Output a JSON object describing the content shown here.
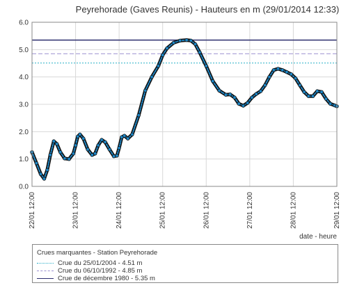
{
  "chart_data": {
    "type": "line",
    "title": "Peyrehorade (Gaves Reunis) - Hauteurs en m (29/01/2014 12:33)",
    "xlabel": "date - heure",
    "ylabel": "",
    "xlim": [
      0,
      7
    ],
    "ylim": [
      0,
      6
    ],
    "y_ticks": [
      "0.0",
      "1.0",
      "2.0",
      "3.0",
      "4.0",
      "5.0",
      "6.0"
    ],
    "x_ticks": [
      "22/01 12:00",
      "23/01 12:00",
      "24/01 12:00",
      "25/01 12:00",
      "26/01 12:00",
      "27/01 12:00",
      "28/01 12:00",
      "29/01 12:00"
    ],
    "grid": true,
    "series": [
      {
        "x": [
          0.0,
          0.1,
          0.2,
          0.28,
          0.35,
          0.42,
          0.5,
          0.57,
          0.65,
          0.75,
          0.85,
          0.95,
          1.0,
          1.05,
          1.1,
          1.18,
          1.28,
          1.38,
          1.45,
          1.52,
          1.6,
          1.68,
          1.78,
          1.88,
          1.95,
          2.0,
          2.06,
          2.12,
          2.2,
          2.3,
          2.45,
          2.6,
          2.75,
          2.9,
          3.0,
          3.1,
          3.25,
          3.4,
          3.55,
          3.65,
          3.75,
          3.85,
          4.0,
          4.15,
          4.3,
          4.45,
          4.55,
          4.65,
          4.75,
          4.85,
          4.95,
          5.05,
          5.15,
          5.25,
          5.35,
          5.45,
          5.55,
          5.65,
          5.75,
          5.85,
          5.95,
          6.05,
          6.15,
          6.25,
          6.35,
          6.45,
          6.55,
          6.65,
          6.75,
          6.85,
          6.95,
          7.0
        ],
        "y": [
          1.25,
          0.85,
          0.45,
          0.28,
          0.6,
          1.15,
          1.65,
          1.55,
          1.25,
          1.02,
          1.0,
          1.2,
          1.5,
          1.82,
          1.9,
          1.75,
          1.35,
          1.15,
          1.2,
          1.5,
          1.7,
          1.62,
          1.35,
          1.1,
          1.12,
          1.4,
          1.8,
          1.85,
          1.75,
          1.9,
          2.6,
          3.5,
          4.0,
          4.4,
          4.8,
          5.05,
          5.25,
          5.33,
          5.35,
          5.33,
          5.2,
          4.9,
          4.4,
          3.85,
          3.5,
          3.35,
          3.36,
          3.25,
          3.02,
          2.95,
          3.05,
          3.25,
          3.38,
          3.48,
          3.7,
          4.0,
          4.25,
          4.3,
          4.25,
          4.18,
          4.1,
          3.95,
          3.7,
          3.45,
          3.3,
          3.3,
          3.48,
          3.45,
          3.2,
          3.02,
          2.96,
          2.93
        ]
      }
    ],
    "reference_lines": [
      {
        "value": 4.51,
        "color": "#2ab0c8",
        "style": "dotted"
      },
      {
        "value": 4.85,
        "color": "#9a8fd0",
        "style": "dashed"
      },
      {
        "value": 5.35,
        "color": "#2c2d6e",
        "style": "solid"
      }
    ],
    "series_color": "#1e88c8",
    "legend": {
      "title": "Crues marquantes - Station Peyrehorade",
      "placement": "bottom",
      "entries": [
        "Crue du 25/01/2004 - 4.51 m",
        "Crue du 06/10/1992 - 4.85 m",
        "Crue de décembre 1980 - 5.35 m"
      ]
    }
  }
}
